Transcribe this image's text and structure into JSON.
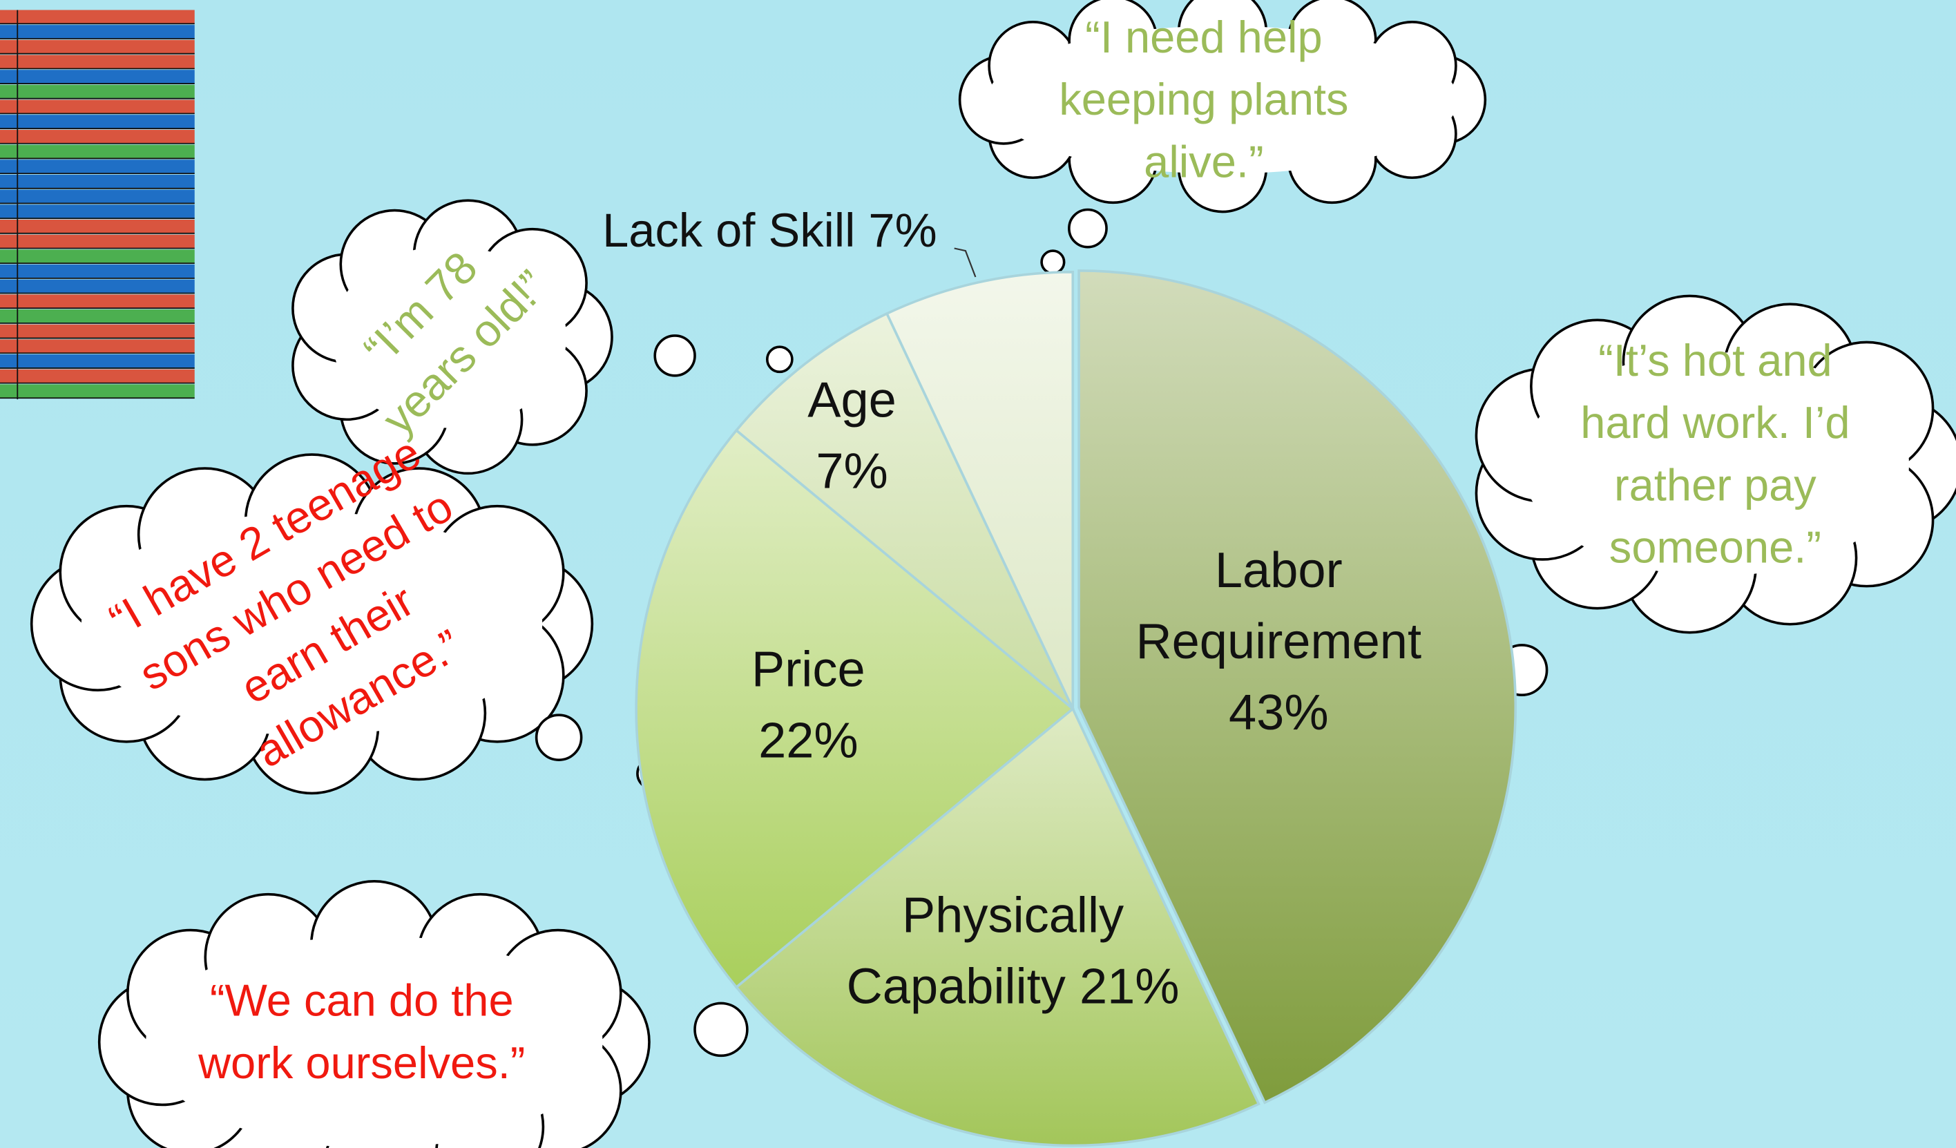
{
  "chart_data": {
    "type": "pie",
    "categories": [
      "Labor Requirement",
      "Physically Capability",
      "Price",
      "Age",
      "Lack of Skill"
    ],
    "values": [
      43,
      21,
      22,
      7,
      7
    ],
    "value_labels": [
      "43%",
      "21%",
      "22%",
      "7%",
      "7%"
    ],
    "colors": [
      "#7f9c3c",
      "#a3c65a",
      "#a9cf5c",
      "#c9dca2",
      "#dde8c6"
    ],
    "annotations": [
      {
        "text": "“I need help keeping plants alive.”",
        "color": "#9bbb59"
      },
      {
        "text": "“It’s hot and hard work. I’d rather pay someone.”",
        "color": "#9bbb59"
      },
      {
        "text": "“I’m 78 years old!”",
        "color": "#9bbb59"
      },
      {
        "text": "“I have 2 teenage sons who need to earn their allowance.”",
        "color": "#f0190f"
      },
      {
        "text": "“We can do the work ourselves.”",
        "color": "#f0190f"
      }
    ]
  }
}
